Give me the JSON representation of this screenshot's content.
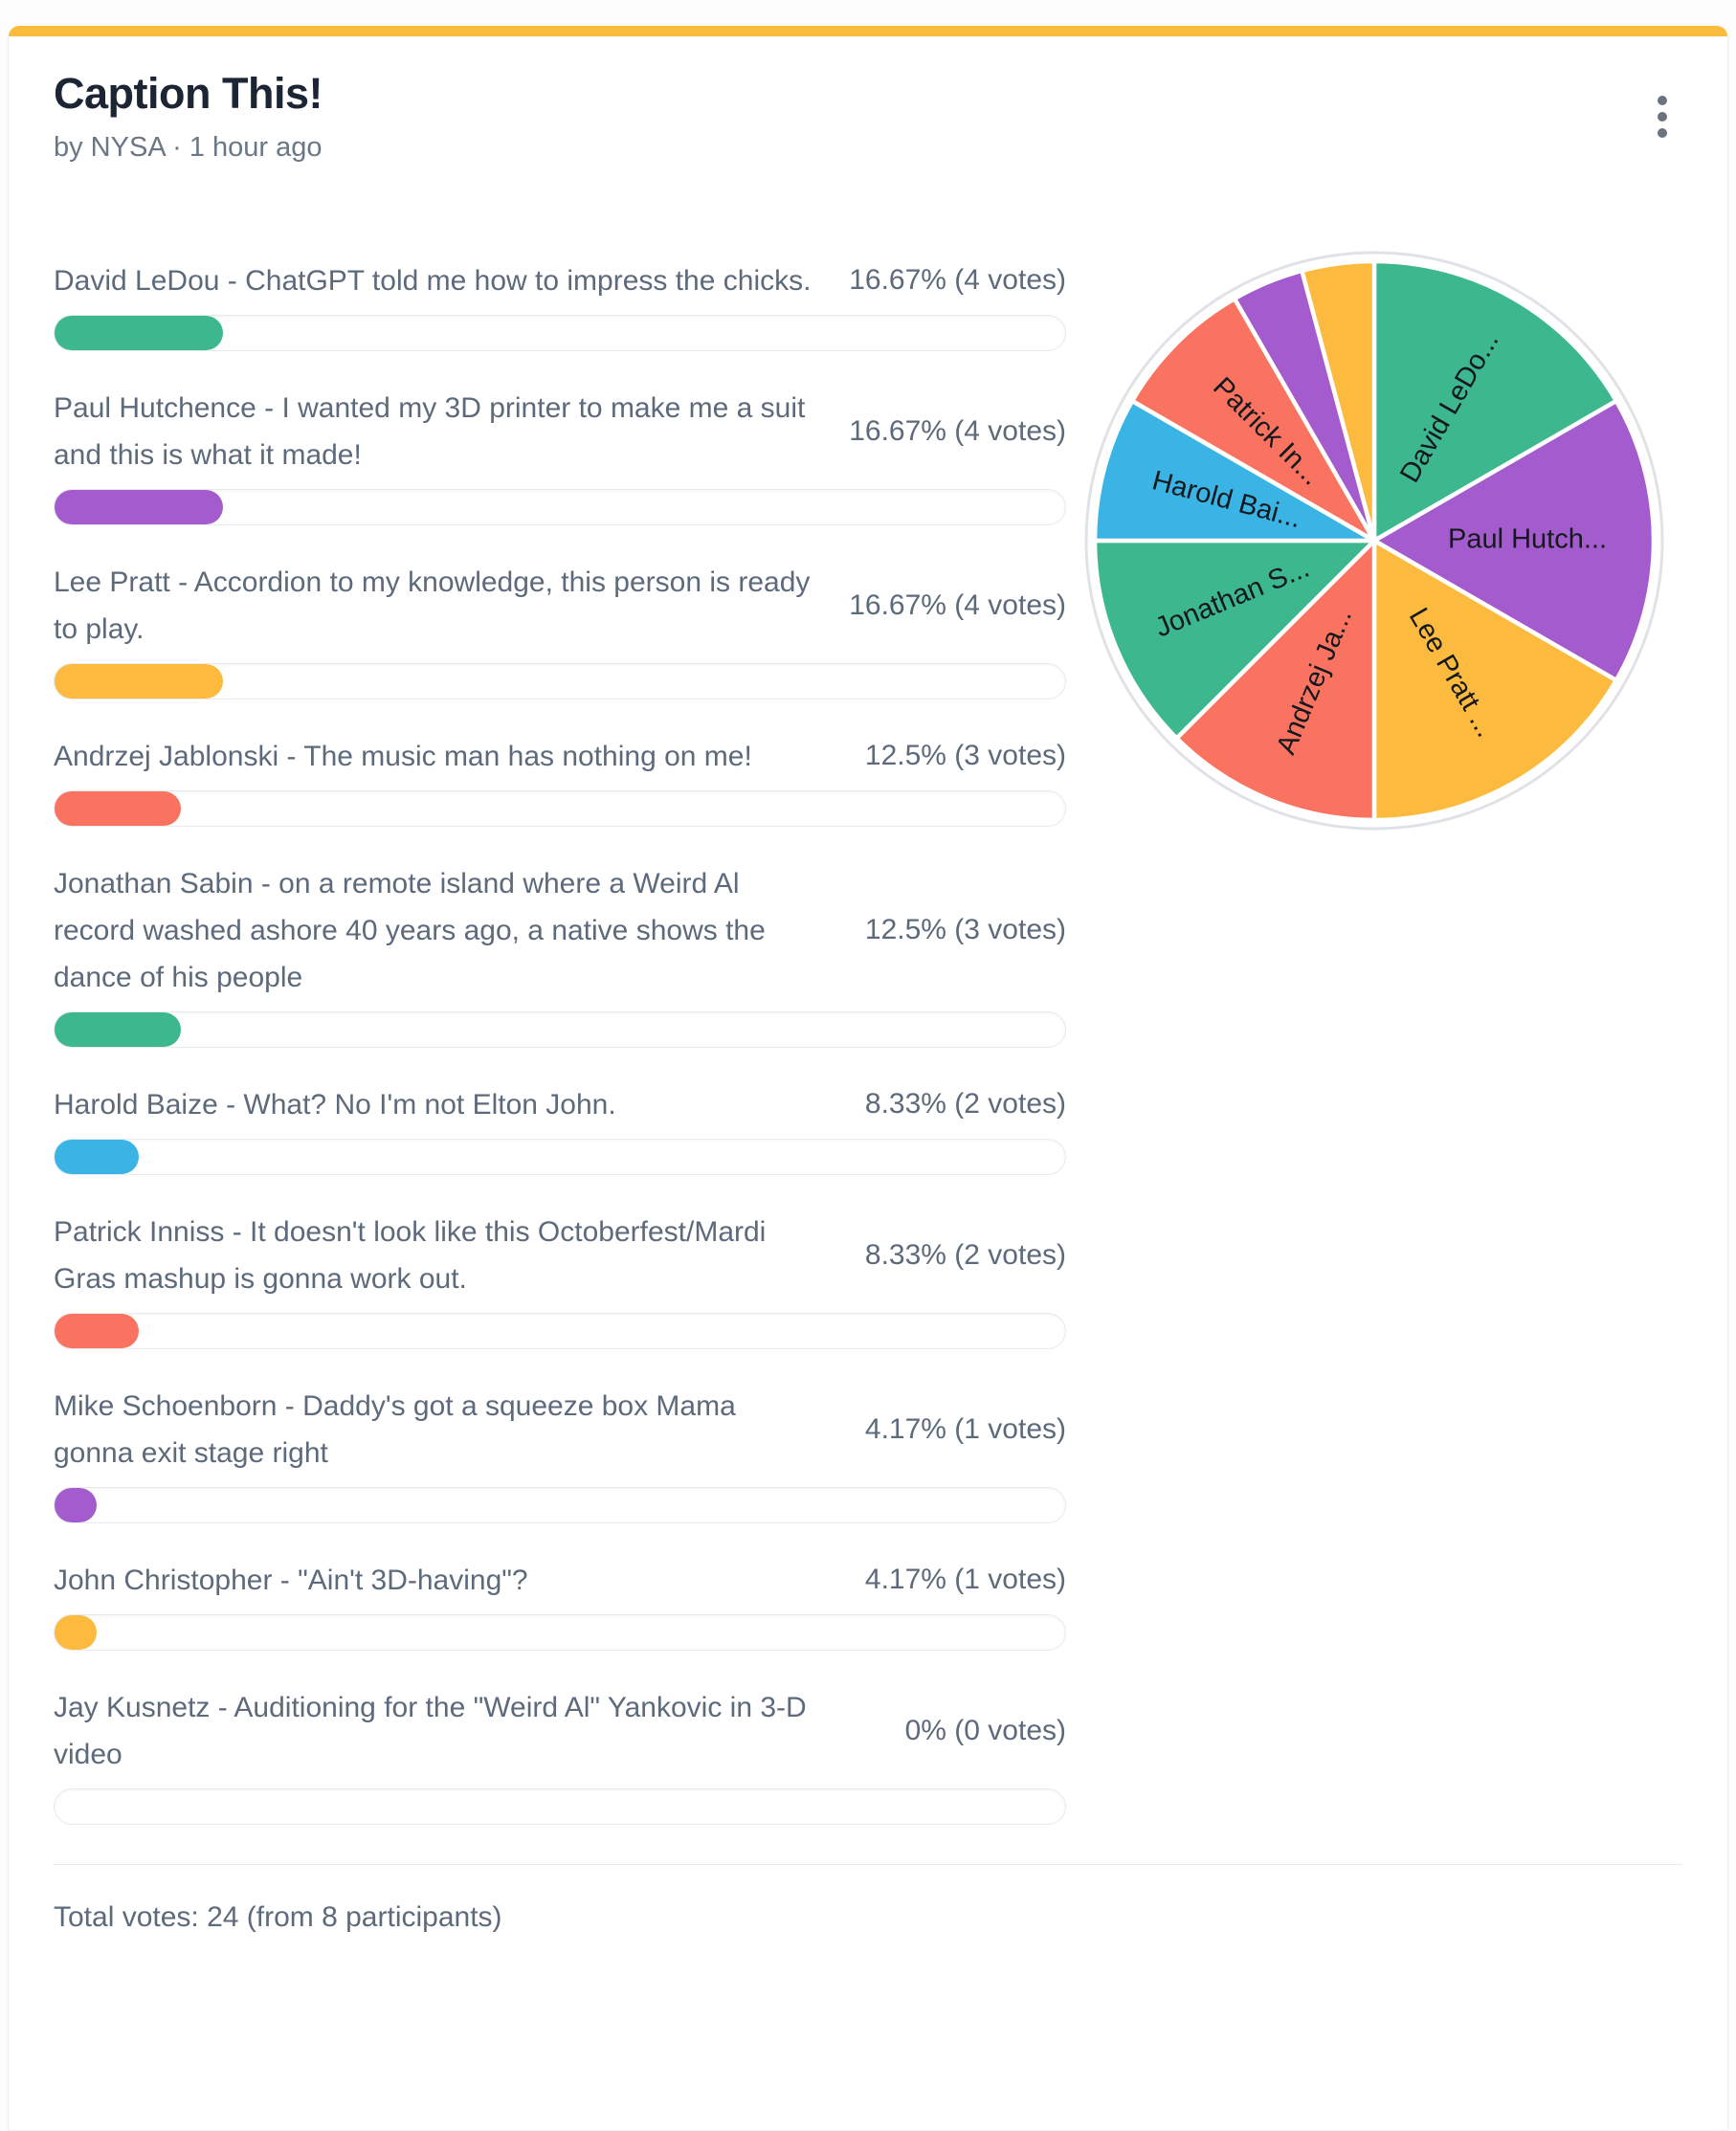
{
  "poll": {
    "title": "Caption This!",
    "byline": "by NYSA · 1 hour ago",
    "total_votes_text": "Total votes: 24 (from 8 participants)",
    "accent_color": "#fbbb3c",
    "options": [
      {
        "label": "David LeDou - ChatGPT told me how to impress the chicks.",
        "result": "16.67% (4 votes)",
        "percent": 16.67,
        "votes": 4,
        "color": "#3cb78e"
      },
      {
        "label": "Paul Hutchence - I wanted my 3D printer to make me a suit and this is what it made!",
        "result": "16.67% (4 votes)",
        "percent": 16.67,
        "votes": 4,
        "color": "#a35bcd"
      },
      {
        "label": "Lee Pratt - Accordion to my knowledge, this person is ready to play.",
        "result": "16.67% (4 votes)",
        "percent": 16.67,
        "votes": 4,
        "color": "#fcba3e"
      },
      {
        "label": "Andrzej Jablonski - The music man has nothing on me!",
        "result": "12.5% (3 votes)",
        "percent": 12.5,
        "votes": 3,
        "color": "#f97360"
      },
      {
        "label": "Jonathan Sabin - on a remote island where a Weird Al record washed ashore 40 years ago, a native shows the dance of his people",
        "result": "12.5% (3 votes)",
        "percent": 12.5,
        "votes": 3,
        "color": "#3cb78e"
      },
      {
        "label": "Harold Baize - What? No I'm not Elton John.",
        "result": "8.33% (2 votes)",
        "percent": 8.33,
        "votes": 2,
        "color": "#3ab4e4"
      },
      {
        "label": "Patrick Inniss - It doesn't look like this Octoberfest/Mardi Gras mashup is gonna work out.",
        "result": "8.33% (2 votes)",
        "percent": 8.33,
        "votes": 2,
        "color": "#f97360"
      },
      {
        "label": "Mike Schoenborn - Daddy's got a squeeze box Mama gonna exit stage right",
        "result": "4.17% (1 votes)",
        "percent": 4.17,
        "votes": 1,
        "color": "#a35bcd"
      },
      {
        "label": "John Christopher - \"Ain't 3D-having\"?",
        "result": "4.17% (1 votes)",
        "percent": 4.17,
        "votes": 1,
        "color": "#fcba3e"
      },
      {
        "label": "Jay Kusnetz - Auditioning for the \"Weird Al\" Yankovic in 3-D video",
        "result": "0% (0 votes)",
        "percent": 0,
        "votes": 0,
        "color": null
      }
    ]
  },
  "chart_data": {
    "type": "pie",
    "title": "",
    "categories": [
      "David LeDou",
      "Paul Hutchence",
      "Lee Pratt",
      "Andrzej Jablonski",
      "Jonathan Sabin",
      "Harold Baize",
      "Patrick Inniss",
      "Mike Schoenborn",
      "John Christopher",
      "Jay Kusnetz"
    ],
    "values": [
      4,
      4,
      4,
      3,
      3,
      2,
      2,
      1,
      1,
      0
    ],
    "percents": [
      16.67,
      16.67,
      16.67,
      12.5,
      12.5,
      8.33,
      8.33,
      4.17,
      4.17,
      0
    ],
    "slice_labels": [
      "David LeDo...",
      "Paul Hutch...",
      "Lee Pratt ...",
      "Andrzej Ja...",
      "Jonathan S...",
      "Harold Bai...",
      "Patrick In...",
      null,
      null,
      null
    ],
    "colors": [
      "#3cb78e",
      "#a35bcd",
      "#fcba3e",
      "#f97360",
      "#3cb78e",
      "#3ab4e4",
      "#f97360",
      "#a35bcd",
      "#fcba3e",
      null
    ],
    "start_angle_deg": 0,
    "direction": "clockwise",
    "legend_position": "none",
    "label_color": "#15181d",
    "gap_color": "#ffffff",
    "ring_color": "#dfe3e8"
  },
  "menu": {
    "more_label": "more-options"
  }
}
